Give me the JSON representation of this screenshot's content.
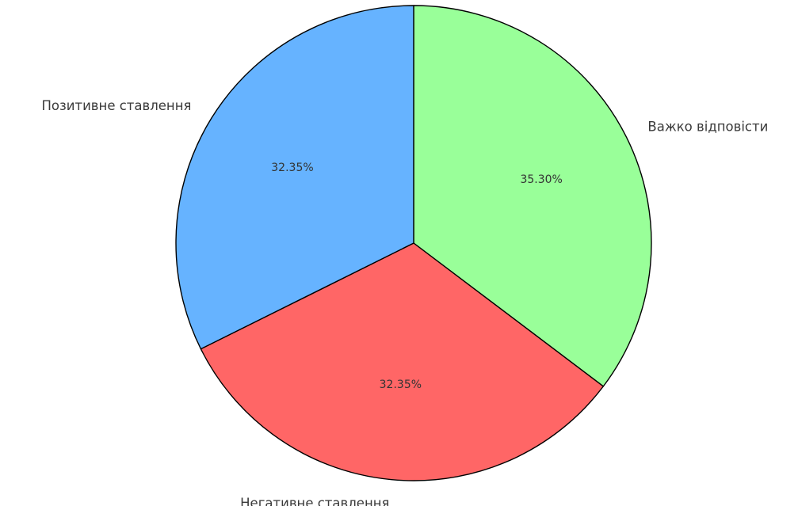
{
  "chart_data": {
    "type": "pie",
    "title": "",
    "startangle_deg": 90,
    "direction": "clockwise",
    "slices": [
      {
        "label": "Важко відповісти",
        "value": 35.3,
        "pct_text": "35.30%",
        "color": "#99ff99"
      },
      {
        "label": "Негативне ставлення",
        "value": 32.35,
        "pct_text": "32.35%",
        "color": "#ff6666"
      },
      {
        "label": "Позитивне ставлення",
        "value": 32.35,
        "pct_text": "32.35%",
        "color": "#66b3ff"
      }
    ],
    "edge_color": "#000000"
  }
}
